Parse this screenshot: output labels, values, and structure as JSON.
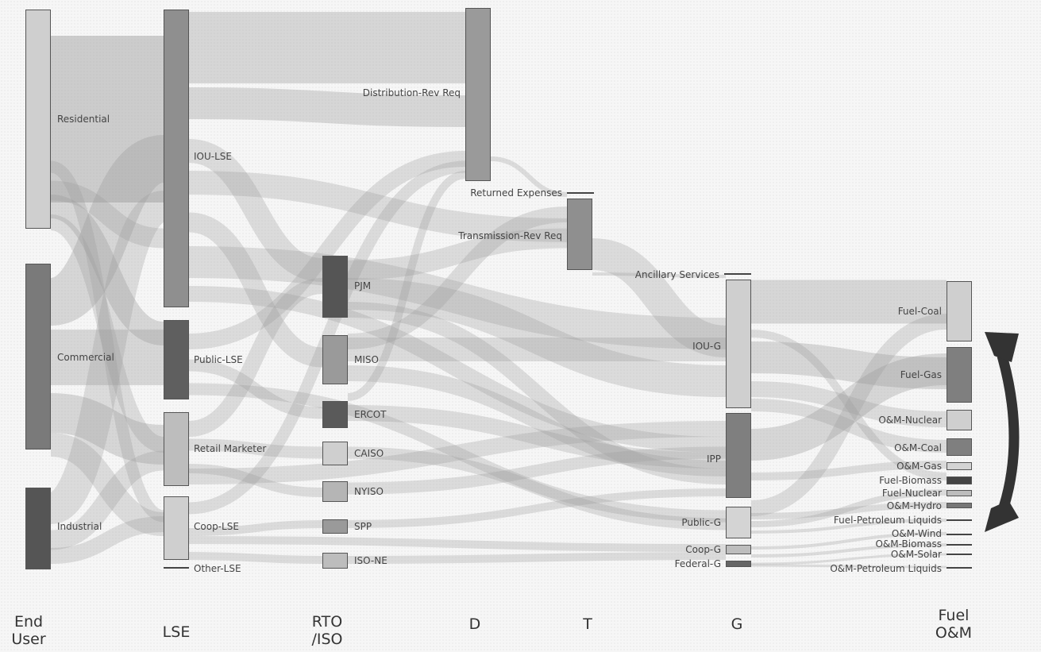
{
  "columns": {
    "end_user": "End\nUser",
    "lse": "LSE",
    "rto_iso": "RTO\n/ISO",
    "d": "D",
    "t": "T",
    "g": "G",
    "fuel_om": "Fuel\nO&M"
  },
  "nodes": {
    "residential": "Residential",
    "commercial": "Commercial",
    "industrial": "Industrial",
    "iou_lse": "IOU-LSE",
    "public_lse": "Public-LSE",
    "retail_marketer": "Retail Marketer",
    "coop_lse": "Coop-LSE",
    "other_lse": "Other-LSE",
    "pjm": "PJM",
    "miso": "MISO",
    "ercot": "ERCOT",
    "caiso": "CAISO",
    "nyiso": "NYISO",
    "spp": "SPP",
    "iso_ne": "ISO-NE",
    "distribution_rev_req": "Distribution-Rev Req",
    "returned_expenses": "Returned Expenses",
    "transmission_rev_req": "Transmission-Rev Req",
    "ancillary_services": "Ancillary Services",
    "iou_g": "IOU-G",
    "ipp": "IPP",
    "public_g": "Public-G",
    "coop_g": "Coop-G",
    "federal_g": "Federal-G",
    "fuel_coal": "Fuel-Coal",
    "fuel_gas": "Fuel-Gas",
    "om_nuclear": "O&M-Nuclear",
    "om_coal": "O&M-Coal",
    "om_gas": "O&M-Gas",
    "fuel_biomass": "Fuel-Biomass",
    "fuel_nuclear": "Fuel-Nuclear",
    "om_hydro": "O&M-Hydro",
    "fuel_petroleum_liquids": "Fuel-Petroleum Liquids",
    "om_wind": "O&M-Wind",
    "om_biomass": "O&M-Biomass",
    "om_solar": "O&M-Solar",
    "om_petroleum_liquids": "O&M-Petroleum Liquids"
  },
  "colors": {
    "flow": "#9a9a9a",
    "node_light": "#c8c8c8",
    "node_mid": "#8a8a8a",
    "node_dark": "#555555",
    "arrow": "#333333"
  }
}
